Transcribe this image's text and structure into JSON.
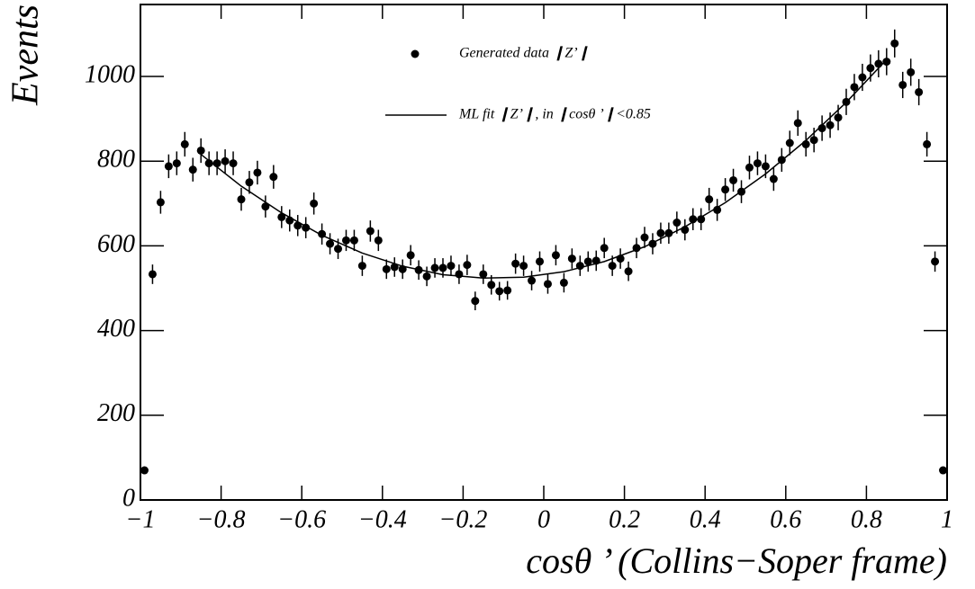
{
  "chart_data": {
    "type": "scatter",
    "x_label": "cosθ ’ (Collins−Soper frame)",
    "y_label": "Events",
    "xlim": [
      -1,
      1
    ],
    "ylim": [
      0,
      1170
    ],
    "xticks": [
      {
        "value": -1,
        "label": "−1"
      },
      {
        "value": -0.8,
        "label": "−0.8"
      },
      {
        "value": -0.6,
        "label": "−0.6"
      },
      {
        "value": -0.4,
        "label": "−0.4"
      },
      {
        "value": -0.2,
        "label": "−0.2"
      },
      0,
      0.2,
      0.4,
      0.6,
      0.8,
      1
    ],
    "yticks": [
      0,
      200,
      400,
      600,
      800,
      1000
    ],
    "series": [
      {
        "name": "Generated data ❙Z’❙",
        "mark": "point",
        "color": "#000000",
        "x": [
          -0.99,
          -0.97,
          -0.95,
          -0.93,
          -0.91,
          -0.89,
          -0.87,
          -0.85,
          -0.83,
          -0.81,
          -0.79,
          -0.77,
          -0.75,
          -0.73,
          -0.71,
          -0.69,
          -0.67,
          -0.65,
          -0.63,
          -0.61,
          -0.59,
          -0.57,
          -0.55,
          -0.53,
          -0.51,
          -0.49,
          -0.47,
          -0.45,
          -0.43,
          -0.41,
          -0.39,
          -0.37,
          -0.35,
          -0.33,
          -0.31,
          -0.29,
          -0.27,
          -0.25,
          -0.23,
          -0.21,
          -0.19,
          -0.17,
          -0.15,
          -0.13,
          -0.11,
          -0.09,
          -0.07,
          -0.05,
          -0.03,
          -0.01,
          0.01,
          0.03,
          0.05,
          0.07,
          0.09,
          0.11,
          0.13,
          0.15,
          0.17,
          0.19,
          0.21,
          0.23,
          0.25,
          0.27,
          0.29,
          0.31,
          0.33,
          0.35,
          0.37,
          0.39,
          0.41,
          0.43,
          0.45,
          0.47,
          0.49,
          0.51,
          0.53,
          0.55,
          0.57,
          0.59,
          0.61,
          0.63,
          0.65,
          0.67,
          0.69,
          0.71,
          0.73,
          0.75,
          0.77,
          0.79,
          0.81,
          0.83,
          0.85,
          0.87,
          0.89,
          0.91,
          0.93,
          0.95,
          0.97,
          0.99
        ],
        "values": [
          70,
          533,
          703,
          788,
          795,
          840,
          780,
          825,
          795,
          795,
          800,
          795,
          710,
          750,
          773,
          693,
          763,
          668,
          660,
          648,
          643,
          700,
          628,
          605,
          593,
          613,
          613,
          553,
          635,
          613,
          545,
          550,
          545,
          578,
          543,
          528,
          548,
          548,
          553,
          533,
          555,
          470,
          533,
          508,
          493,
          495,
          558,
          553,
          518,
          563,
          510,
          578,
          513,
          570,
          553,
          563,
          565,
          595,
          553,
          570,
          540,
          595,
          620,
          605,
          630,
          630,
          655,
          638,
          663,
          663,
          710,
          685,
          733,
          755,
          728,
          785,
          795,
          788,
          758,
          803,
          843,
          890,
          840,
          850,
          878,
          885,
          903,
          940,
          975,
          998,
          1020,
          1030,
          1035,
          1078,
          980,
          1010,
          963,
          840,
          563,
          70
        ],
        "errors": [
          8,
          23,
          27,
          28,
          28,
          29,
          28,
          29,
          28,
          28,
          28,
          28,
          27,
          27,
          28,
          26,
          28,
          26,
          26,
          25,
          25,
          26,
          25,
          25,
          24,
          25,
          25,
          24,
          25,
          25,
          23,
          23,
          23,
          24,
          23,
          23,
          23,
          23,
          24,
          23,
          24,
          22,
          23,
          23,
          22,
          22,
          24,
          24,
          23,
          24,
          23,
          24,
          23,
          24,
          24,
          24,
          24,
          24,
          24,
          24,
          23,
          24,
          25,
          25,
          25,
          25,
          26,
          25,
          26,
          26,
          27,
          26,
          27,
          27,
          27,
          28,
          28,
          28,
          28,
          28,
          29,
          30,
          29,
          29,
          30,
          30,
          30,
          31,
          31,
          32,
          32,
          32,
          32,
          33,
          31,
          32,
          31,
          29,
          24,
          8
        ]
      },
      {
        "name": "ML fit ❙Z’❙,  in ❙cosθ ’❙<0.85",
        "mark": "line",
        "color": "#000000",
        "x": [
          -0.85,
          -0.75,
          -0.65,
          -0.55,
          -0.45,
          -0.35,
          -0.25,
          -0.15,
          -0.05,
          0.05,
          0.15,
          0.25,
          0.35,
          0.45,
          0.55,
          0.65,
          0.75,
          0.85
        ],
        "values": [
          816,
          741,
          678,
          625,
          583,
          552,
          532,
          524,
          526,
          539,
          563,
          598,
          645,
          702,
          770,
          849,
          939,
          1040
        ]
      }
    ]
  }
}
